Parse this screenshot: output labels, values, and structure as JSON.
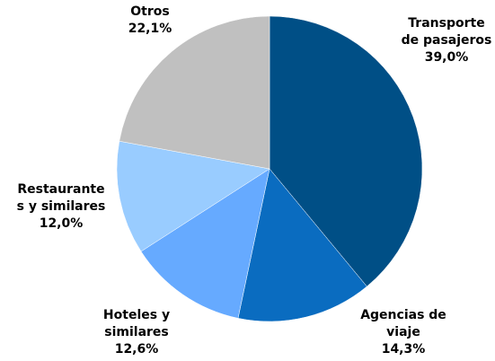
{
  "chart_data": {
    "type": "pie",
    "categories": [
      "Transporte\nde pasajeros",
      "Agencias de\nviaje",
      "Hoteles y\nsimilares",
      "Restaurante\ns y similares",
      "Otros"
    ],
    "values": [
      39.0,
      14.3,
      12.6,
      12.0,
      22.1
    ],
    "value_labels": [
      "39,0%",
      "14,3%",
      "12,6%",
      "12,0%",
      "22,1%"
    ],
    "colors": [
      "#004f86",
      "#0a6cc0",
      "#66aaff",
      "#99ccff",
      "#c0c0c0"
    ]
  }
}
